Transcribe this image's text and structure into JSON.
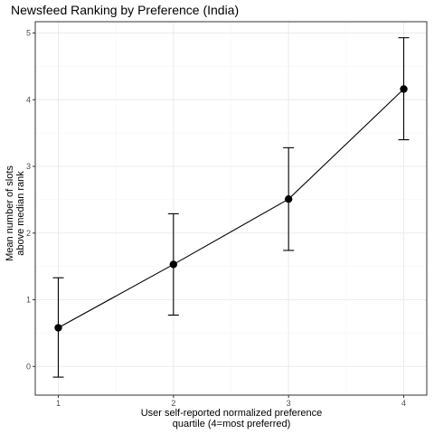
{
  "chart_data": {
    "type": "line",
    "title": "Newsfeed Ranking by Preference (India)",
    "xlabel_lines": [
      "User self-reported normalized preference",
      "quartile (4=most preferred)"
    ],
    "ylabel_lines": [
      "Mean number of slots",
      "above median rank"
    ],
    "x": [
      1,
      2,
      3,
      4
    ],
    "y": [
      0.58,
      1.53,
      2.51,
      4.16
    ],
    "ci_low": [
      -0.16,
      0.77,
      1.74,
      3.4
    ],
    "ci_high": [
      1.33,
      2.29,
      3.28,
      4.93
    ],
    "xticks": [
      1,
      2,
      3,
      4
    ],
    "yticks": [
      0,
      1,
      2,
      3,
      4,
      5
    ],
    "xlim": [
      0.8,
      4.2
    ],
    "ylim": [
      -0.43,
      5.17
    ],
    "grid": true,
    "legend": "none",
    "colors": {
      "line": "#000000",
      "point": "#000000",
      "grid_major": "#ebebeb",
      "grid_minor": "#f5f5f5",
      "panel_border": "#333333"
    }
  }
}
